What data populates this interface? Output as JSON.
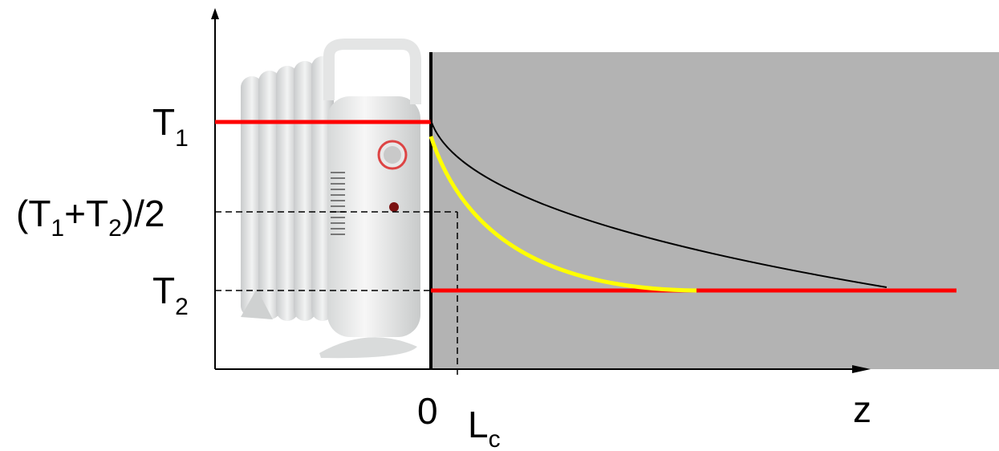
{
  "labels": {
    "t1": [
      "T",
      "1"
    ],
    "mid": [
      "(T",
      "1",
      "+T",
      "2",
      ")/2"
    ],
    "t2": [
      "T",
      "2"
    ],
    "origin": "0",
    "lc": [
      "L",
      "c"
    ],
    "z": "z"
  }
}
